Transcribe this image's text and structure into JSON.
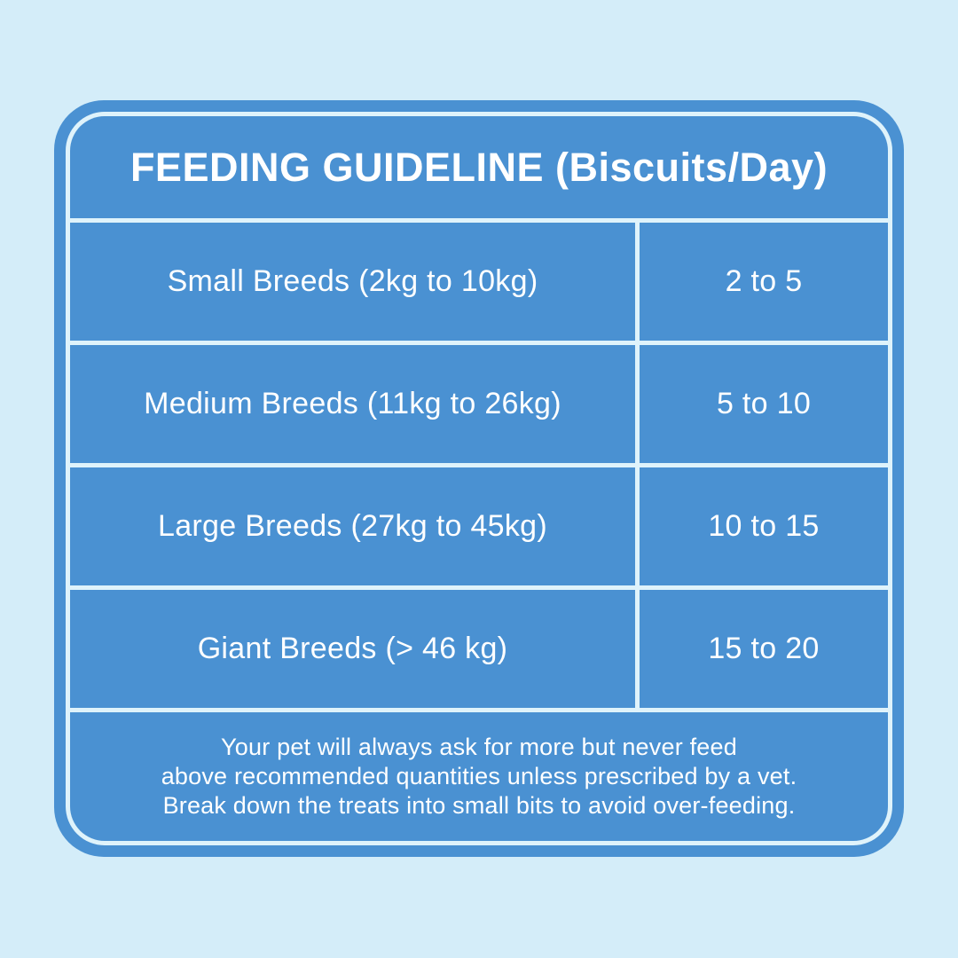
{
  "title": "FEEDING GUIDELINE (Biscuits/Day)",
  "table": {
    "rows": [
      {
        "breed": "Small Breeds (2kg to 10kg)",
        "amount": "2 to 5"
      },
      {
        "breed": "Medium Breeds (11kg to 26kg)",
        "amount": "5 to 10"
      },
      {
        "breed": "Large Breeds (27kg to 45kg)",
        "amount": "10 to 15"
      },
      {
        "breed": "Giant Breeds (> 46 kg)",
        "amount": "15 to 20"
      }
    ]
  },
  "note": {
    "lines": [
      "Your pet will always ask for more but never feed",
      "above recommended quantities unless prescribed by a vet.",
      "Break down the treats into small bits to avoid over-feeding."
    ]
  },
  "colors": {
    "page_background": "#d4edf9",
    "card_background": "#4a91d2",
    "divider_line": "#dff3fb",
    "text": "#ffffff"
  }
}
